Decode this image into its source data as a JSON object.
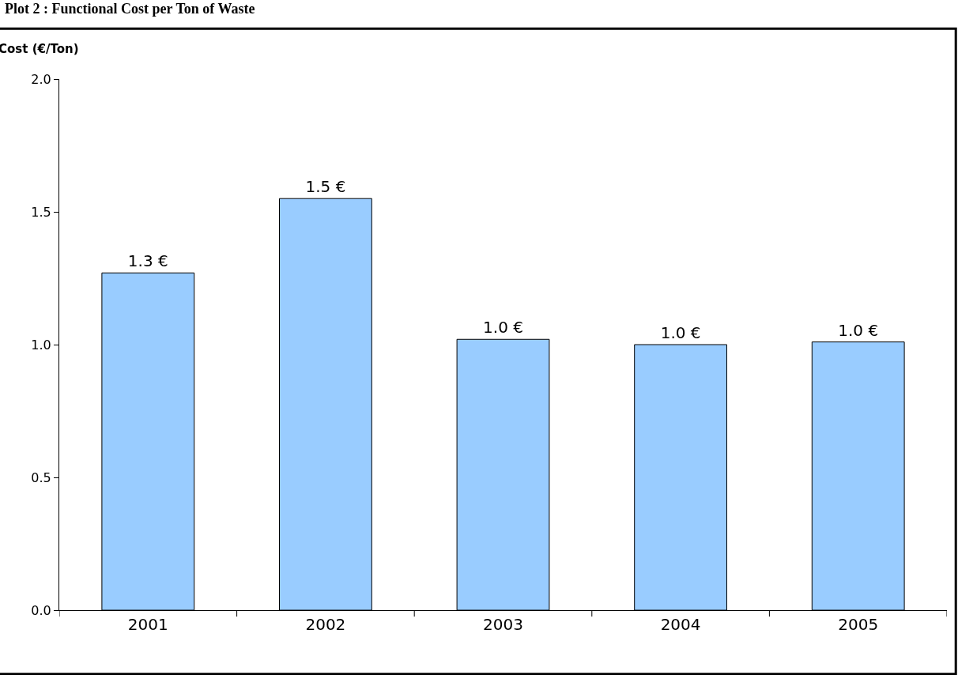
{
  "chart_data": {
    "type": "bar",
    "title": "Plot 2 : Functional Cost per Ton of Waste",
    "ylabel": "Cost (€/Ton)",
    "categories": [
      "2001",
      "2002",
      "2003",
      "2004",
      "2005"
    ],
    "values": [
      1.27,
      1.55,
      1.02,
      1.0,
      1.01
    ],
    "value_labels": [
      "1.3 €",
      "1.5 €",
      "1.0 €",
      "1.0 €",
      "1.0 €"
    ],
    "color": "#99ccff",
    "ylim": [
      0,
      2.0
    ],
    "yticks": [
      {
        "value": 0,
        "label": "0.0"
      },
      {
        "value": 0.5,
        "label": "0.5"
      },
      {
        "value": 1.0,
        "label": "1.0"
      },
      {
        "value": 1.5,
        "label": "1.5"
      },
      {
        "value": 2.0,
        "label": "2.0"
      }
    ],
    "grid": false,
    "legend": false
  }
}
